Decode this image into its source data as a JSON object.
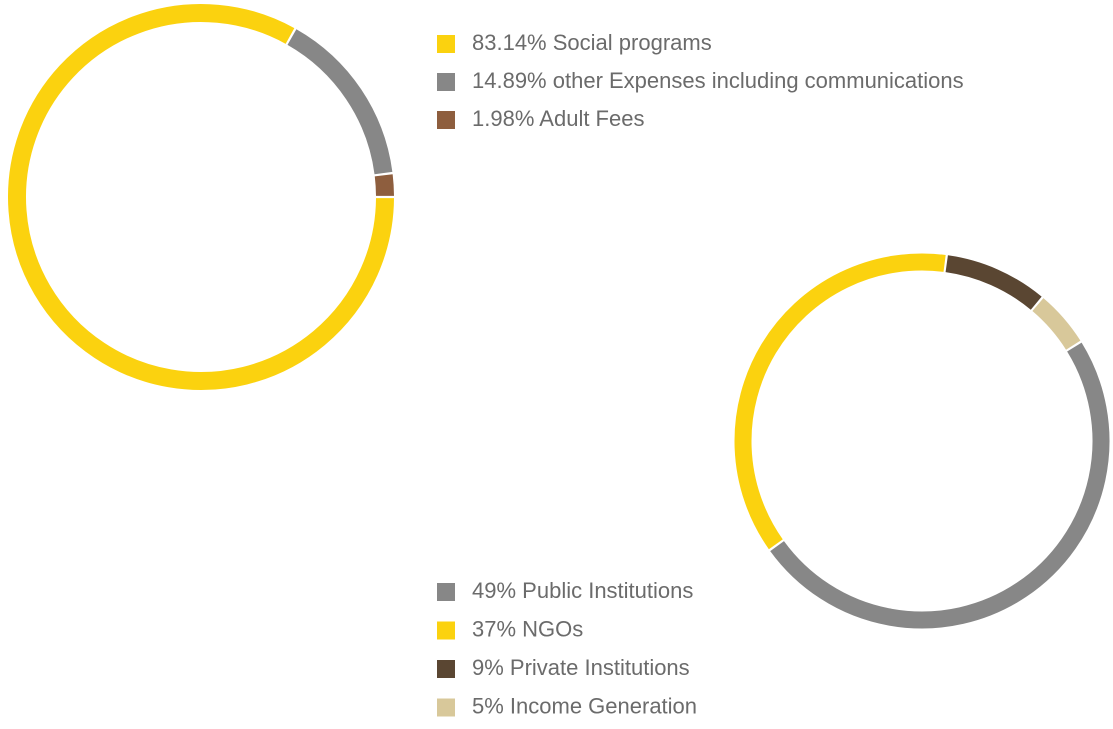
{
  "chart_data": [
    {
      "type": "donut",
      "categories": [
        "Social programs",
        "other Expenses including communications",
        "Adult Fees"
      ],
      "values": [
        83.14,
        14.89,
        1.98
      ],
      "value_labels": [
        "83.14%",
        "14.89%",
        "1.98%"
      ],
      "colors": [
        "#fbd20f",
        "#878787",
        "#8e5e3e"
      ]
    },
    {
      "type": "donut",
      "categories": [
        "Public Institutions",
        "NGOs",
        "Private Institutions",
        "Income Generation"
      ],
      "values": [
        49,
        37,
        9,
        5
      ],
      "value_labels": [
        "49%",
        "37%",
        "9%",
        "5%"
      ],
      "colors": [
        "#878787",
        "#fbd20f",
        "#5a4632",
        "#d8c89a"
      ]
    }
  ]
}
